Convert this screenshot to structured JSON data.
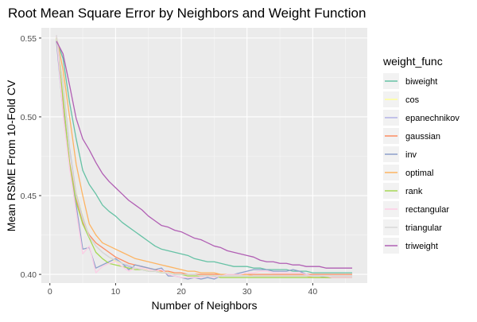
{
  "chart_data": {
    "type": "line",
    "title": "Root Mean Square Error by Neighbors and Weight Function",
    "xlabel": "Number of Neighbors",
    "ylabel": "Mean RSME From 10-Fold CV",
    "xlim": [
      -1.3,
      48.3
    ],
    "ylim": [
      0.3945,
      0.5565
    ],
    "xticks": [
      0,
      10,
      20,
      30,
      40
    ],
    "yticks": [
      0.4,
      0.45,
      0.5,
      0.55
    ],
    "ytick_labels": [
      "0.40",
      "0.45",
      "0.50",
      "0.55"
    ],
    "grid": true,
    "legend_title": "weight_func",
    "legend_position": "right",
    "x": [
      1,
      2,
      3,
      4,
      5,
      6,
      7,
      8,
      9,
      10,
      11,
      12,
      13,
      14,
      15,
      16,
      17,
      18,
      19,
      20,
      21,
      22,
      23,
      24,
      25,
      26,
      27,
      28,
      29,
      30,
      31,
      32,
      33,
      34,
      35,
      36,
      37,
      38,
      39,
      40,
      41,
      42,
      43,
      44,
      45,
      46
    ],
    "series": [
      {
        "name": "biweight",
        "color": "#66c2a5",
        "values": [
          0.549,
          0.537,
          0.509,
          0.486,
          0.466,
          0.457,
          0.451,
          0.444,
          0.44,
          0.437,
          0.433,
          0.43,
          0.427,
          0.424,
          0.421,
          0.418,
          0.416,
          0.415,
          0.414,
          0.413,
          0.412,
          0.41,
          0.409,
          0.408,
          0.408,
          0.407,
          0.406,
          0.405,
          0.405,
          0.405,
          0.404,
          0.404,
          0.403,
          0.403,
          0.403,
          0.403,
          0.402,
          0.402,
          0.402,
          0.401,
          0.401,
          0.401,
          0.401,
          0.401,
          0.401,
          0.401
        ]
      },
      {
        "name": "cos",
        "color": "#ffff99",
        "values": [
          0.55,
          0.523,
          0.48,
          0.452,
          0.437,
          0.424,
          0.418,
          0.414,
          0.411,
          0.408,
          0.407,
          0.405,
          0.404,
          0.403,
          0.403,
          0.402,
          0.402,
          0.401,
          0.401,
          0.401,
          0.4,
          0.4,
          0.4,
          0.4,
          0.399,
          0.399,
          0.399,
          0.399,
          0.399,
          0.399,
          0.399,
          0.399,
          0.399,
          0.399,
          0.399,
          0.399,
          0.399,
          0.399,
          0.399,
          0.399,
          0.399,
          0.399,
          0.399,
          0.399,
          0.399,
          0.399
        ]
      },
      {
        "name": "epanechnikov",
        "color": "#b3b3e6",
        "values": [
          0.55,
          0.521,
          0.48,
          0.451,
          0.436,
          0.424,
          0.418,
          0.414,
          0.411,
          0.409,
          0.407,
          0.405,
          0.404,
          0.403,
          0.402,
          0.402,
          0.401,
          0.401,
          0.4,
          0.4,
          0.4,
          0.4,
          0.399,
          0.399,
          0.399,
          0.399,
          0.399,
          0.399,
          0.399,
          0.399,
          0.399,
          0.399,
          0.399,
          0.399,
          0.399,
          0.399,
          0.399,
          0.399,
          0.399,
          0.399,
          0.399,
          0.399,
          0.399,
          0.399,
          0.399,
          0.399
        ]
      },
      {
        "name": "gaussian",
        "color": "#fc8d62",
        "values": [
          0.551,
          0.51,
          0.471,
          0.448,
          0.433,
          0.425,
          0.42,
          0.417,
          0.414,
          0.411,
          0.409,
          0.407,
          0.406,
          0.405,
          0.404,
          0.403,
          0.402,
          0.402,
          0.401,
          0.401,
          0.4,
          0.4,
          0.4,
          0.4,
          0.4,
          0.4,
          0.4,
          0.4,
          0.4,
          0.4,
          0.4,
          0.4,
          0.4,
          0.4,
          0.4,
          0.4,
          0.4,
          0.4,
          0.4,
          0.4,
          0.4,
          0.4,
          0.4,
          0.4,
          0.4,
          0.4
        ]
      },
      {
        "name": "inv",
        "color": "#8da0cb",
        "values": [
          0.548,
          0.503,
          0.468,
          0.444,
          0.416,
          0.417,
          0.404,
          0.406,
          0.408,
          0.41,
          0.407,
          0.403,
          0.406,
          0.405,
          0.404,
          0.403,
          0.404,
          0.399,
          0.399,
          0.398,
          0.397,
          0.398,
          0.397,
          0.398,
          0.397,
          0.399,
          0.4,
          0.4,
          0.401,
          0.402,
          0.403,
          0.403,
          0.403,
          0.402,
          0.402,
          0.402,
          0.403,
          0.402,
          0.4,
          0.399,
          0.399,
          0.398,
          0.398,
          0.398,
          0.398,
          0.398
        ]
      },
      {
        "name": "optimal",
        "color": "#fdb462",
        "values": [
          0.551,
          0.53,
          0.5,
          0.47,
          0.45,
          0.432,
          0.425,
          0.42,
          0.418,
          0.416,
          0.414,
          0.412,
          0.41,
          0.409,
          0.408,
          0.407,
          0.406,
          0.405,
          0.404,
          0.403,
          0.402,
          0.402,
          0.401,
          0.401,
          0.401,
          0.4,
          0.4,
          0.4,
          0.4,
          0.4,
          0.399,
          0.399,
          0.399,
          0.399,
          0.399,
          0.399,
          0.399,
          0.399,
          0.399,
          0.398,
          0.398,
          0.398,
          0.398,
          0.398,
          0.398,
          0.398
        ]
      },
      {
        "name": "rank",
        "color": "#a6d854",
        "values": [
          0.55,
          0.512,
          0.47,
          0.446,
          0.432,
          0.423,
          0.414,
          0.41,
          0.407,
          0.406,
          0.405,
          0.404,
          0.403,
          0.403,
          0.402,
          0.402,
          0.401,
          0.401,
          0.4,
          0.4,
          0.399,
          0.399,
          0.399,
          0.399,
          0.399,
          0.398,
          0.398,
          0.398,
          0.398,
          0.398,
          0.398,
          0.398,
          0.398,
          0.398,
          0.398,
          0.398,
          0.398,
          0.398,
          0.398,
          0.398,
          0.398,
          0.398,
          0.398,
          0.398,
          0.398,
          0.398
        ]
      },
      {
        "name": "rectangular",
        "color": "#fccde5",
        "values": [
          0.552,
          0.502,
          0.467,
          0.44,
          0.413,
          0.418,
          0.401,
          0.405,
          0.407,
          0.408,
          0.405,
          0.402,
          0.404,
          0.404,
          0.403,
          0.402,
          0.403,
          0.4,
          0.399,
          0.398,
          0.398,
          0.398,
          0.398,
          0.399,
          0.398,
          0.399,
          0.4,
          0.4,
          0.4,
          0.401,
          0.401,
          0.402,
          0.402,
          0.401,
          0.401,
          0.401,
          0.401,
          0.401,
          0.4,
          0.399,
          0.399,
          0.399,
          0.398,
          0.398,
          0.398,
          0.398
        ]
      },
      {
        "name": "triangular",
        "color": "#d9d9d9",
        "values": [
          0.552,
          0.52,
          0.478,
          0.45,
          0.435,
          0.424,
          0.418,
          0.414,
          0.411,
          0.409,
          0.407,
          0.406,
          0.404,
          0.403,
          0.402,
          0.402,
          0.401,
          0.401,
          0.4,
          0.4,
          0.4,
          0.4,
          0.399,
          0.399,
          0.399,
          0.399,
          0.399,
          0.399,
          0.399,
          0.399,
          0.399,
          0.399,
          0.399,
          0.399,
          0.399,
          0.399,
          0.399,
          0.399,
          0.399,
          0.399,
          0.399,
          0.399,
          0.399,
          0.399,
          0.399,
          0.399
        ]
      },
      {
        "name": "triweight",
        "color": "#b15fb4",
        "values": [
          0.548,
          0.54,
          0.52,
          0.499,
          0.486,
          0.479,
          0.471,
          0.464,
          0.459,
          0.455,
          0.451,
          0.447,
          0.444,
          0.441,
          0.437,
          0.434,
          0.431,
          0.43,
          0.428,
          0.427,
          0.425,
          0.423,
          0.422,
          0.42,
          0.418,
          0.417,
          0.415,
          0.414,
          0.413,
          0.412,
          0.411,
          0.409,
          0.408,
          0.408,
          0.407,
          0.407,
          0.406,
          0.406,
          0.405,
          0.405,
          0.405,
          0.404,
          0.404,
          0.404,
          0.404,
          0.404
        ]
      }
    ]
  }
}
